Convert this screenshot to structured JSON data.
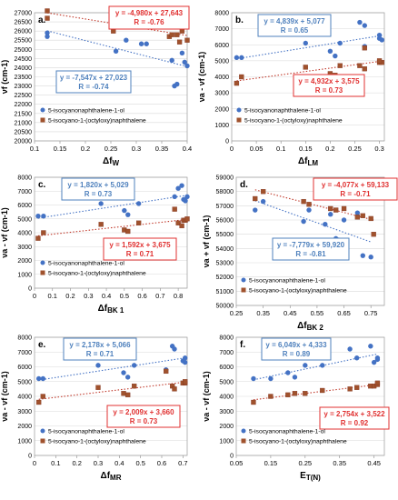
{
  "legend_labels": {
    "s1": "5-isocyanonaphthalene-1-ol",
    "s2": "5-isocyano-1-(octyloxy)naphthalene"
  },
  "colors": {
    "s1": "#4472C4",
    "s2": "#C0392B",
    "s2_fill": "#A0522D",
    "box_blue": "#4F81BD",
    "box_red": "#E03030"
  },
  "chart_data": [
    {
      "type": "scatter",
      "panel_label": "a.",
      "xlabel": "ΔfW",
      "ylabel": "νf (cm-1)",
      "xlim": [
        0.1,
        0.4
      ],
      "ylim": [
        20000,
        27000
      ],
      "xticks": [
        "0.1",
        "0.15",
        "0.2",
        "0.25",
        "0.3",
        "0.35",
        "0.4"
      ],
      "yticks": [
        "20000",
        "20500",
        "21000",
        "21500",
        "22000",
        "22500",
        "23000",
        "23500",
        "24000",
        "24500",
        "25000",
        "25500",
        "26000",
        "26500",
        "27000"
      ],
      "series": [
        {
          "name": "5-isocyanonaphthalene-1-ol",
          "points": [
            [
              0.125,
              25900
            ],
            [
              0.125,
              25700
            ],
            [
              0.26,
              24900
            ],
            [
              0.28,
              25500
            ],
            [
              0.31,
              25300
            ],
            [
              0.32,
              25300
            ],
            [
              0.37,
              24400
            ],
            [
              0.375,
              23000
            ],
            [
              0.38,
              23100
            ],
            [
              0.39,
              24800
            ],
            [
              0.395,
              24300
            ],
            [
              0.4,
              24100
            ]
          ]
        },
        {
          "name": "5-isocyano-1-(octyloxy)naphthalene",
          "points": [
            [
              0.125,
              27100
            ],
            [
              0.125,
              26700
            ],
            [
              0.255,
              26000
            ],
            [
              0.3,
              26600
            ],
            [
              0.31,
              26700
            ],
            [
              0.32,
              26600
            ],
            [
              0.365,
              25700
            ],
            [
              0.37,
              25800
            ],
            [
              0.38,
              25800
            ],
            [
              0.385,
              25400
            ],
            [
              0.39,
              26000
            ],
            [
              0.4,
              25500
            ]
          ]
        }
      ],
      "equations": [
        {
          "line1": "y = -4,980x + 27,643",
          "line2": "R = -0.76",
          "color": "red"
        },
        {
          "line1": "y = -7,547x + 27,023",
          "line2": "R = -0.74",
          "color": "blue"
        }
      ]
    },
    {
      "type": "scatter",
      "panel_label": "b.",
      "xlabel": "ΔfLM",
      "ylabel": "νa - νf (cm-1)",
      "xlim": [
        0,
        0.31
      ],
      "ylim": [
        0,
        8000
      ],
      "xticks": [
        "0",
        "0.05",
        "0.1",
        "0.15",
        "0.2",
        "0.25",
        "0.3"
      ],
      "yticks": [
        "0",
        "1000",
        "2000",
        "3000",
        "4000",
        "5000",
        "6000",
        "7000",
        "8000"
      ],
      "series": [
        {
          "name": "5-isocyanonaphthalene-1-ol",
          "points": [
            [
              0.01,
              5200
            ],
            [
              0.02,
              5200
            ],
            [
              0.15,
              6100
            ],
            [
              0.2,
              5600
            ],
            [
              0.21,
              5300
            ],
            [
              0.22,
              6100
            ],
            [
              0.26,
              7400
            ],
            [
              0.27,
              7200
            ],
            [
              0.27,
              5900
            ],
            [
              0.3,
              6400
            ],
            [
              0.305,
              6300
            ],
            [
              0.3,
              6600
            ]
          ]
        },
        {
          "name": "5-isocyano-1-(octyloxy)naphthalene",
          "points": [
            [
              0.01,
              3600
            ],
            [
              0.02,
              4000
            ],
            [
              0.15,
              4600
            ],
            [
              0.2,
              4200
            ],
            [
              0.21,
              4100
            ],
            [
              0.22,
              4700
            ],
            [
              0.26,
              4700
            ],
            [
              0.27,
              4500
            ],
            [
              0.27,
              5800
            ],
            [
              0.3,
              4900
            ],
            [
              0.305,
              4900
            ],
            [
              0.3,
              5000
            ]
          ]
        }
      ],
      "equations": [
        {
          "line1": "y = 4,839x + 5,077",
          "line2": "R = 0.65",
          "color": "blue"
        },
        {
          "line1": "y = 4,932x + 3,575",
          "line2": "R = 0.73",
          "color": "red"
        }
      ]
    },
    {
      "type": "scatter",
      "panel_label": "c.",
      "xlabel": "ΔfBK 1",
      "ylabel": "νa - νf (cm-1)",
      "xlim": [
        0,
        0.85
      ],
      "ylim": [
        0,
        8000
      ],
      "xticks": [
        "0",
        "0.1",
        "0.2",
        "0.3",
        "0.4",
        "0.5",
        "0.6",
        "0.7",
        "0.8"
      ],
      "yticks": [
        "0",
        "1000",
        "2000",
        "3000",
        "4000",
        "5000",
        "6000",
        "7000",
        "8000"
      ],
      "series": [
        {
          "name": "5-isocyanonaphthalene-1-ol",
          "points": [
            [
              0.02,
              5200
            ],
            [
              0.05,
              5200
            ],
            [
              0.37,
              6100
            ],
            [
              0.5,
              5600
            ],
            [
              0.52,
              5300
            ],
            [
              0.58,
              6100
            ],
            [
              0.78,
              6600
            ],
            [
              0.8,
              7200
            ],
            [
              0.82,
              7400
            ],
            [
              0.83,
              6400
            ],
            [
              0.84,
              6300
            ],
            [
              0.85,
              6600
            ]
          ]
        },
        {
          "name": "5-isocyano-1-(octyloxy)naphthalene",
          "points": [
            [
              0.02,
              3600
            ],
            [
              0.05,
              4000
            ],
            [
              0.37,
              4600
            ],
            [
              0.5,
              4200
            ],
            [
              0.52,
              4100
            ],
            [
              0.58,
              4700
            ],
            [
              0.78,
              5700
            ],
            [
              0.8,
              4700
            ],
            [
              0.82,
              4500
            ],
            [
              0.83,
              4900
            ],
            [
              0.84,
              4900
            ],
            [
              0.85,
              5000
            ]
          ]
        }
      ],
      "equations": [
        {
          "line1": "y = 1,820x + 5,029",
          "line2": "R = 0.73",
          "color": "blue"
        },
        {
          "line1": "y = 1,592x + 3,675",
          "line2": "R = 0.71",
          "color": "red"
        }
      ]
    },
    {
      "type": "scatter",
      "panel_label": "d.",
      "xlabel": "ΔfBK 2",
      "ylabel": "νa + νf (cm-1)",
      "xlim": [
        0.25,
        0.8
      ],
      "ylim": [
        50000,
        59000
      ],
      "xticks": [
        "0.25",
        "0.35",
        "0.45",
        "0.55",
        "0.65",
        "0.75"
      ],
      "yticks": [
        "50000",
        "51000",
        "52000",
        "53000",
        "54000",
        "55000",
        "56000",
        "57000",
        "58000",
        "59000"
      ],
      "series": [
        {
          "name": "5-isocyanonaphthalene-1-ol",
          "points": [
            [
              0.32,
              56700
            ],
            [
              0.35,
              57300
            ],
            [
              0.5,
              55900
            ],
            [
              0.52,
              56700
            ],
            [
              0.58,
              55700
            ],
            [
              0.6,
              56400
            ],
            [
              0.62,
              54700
            ],
            [
              0.63,
              54600
            ],
            [
              0.65,
              56000
            ],
            [
              0.72,
              53500
            ],
            [
              0.75,
              53400
            ],
            [
              0.7,
              56500
            ]
          ]
        },
        {
          "name": "5-isocyano-1-(octyloxy)naphthalene",
          "points": [
            [
              0.32,
              57500
            ],
            [
              0.35,
              58000
            ],
            [
              0.5,
              57300
            ],
            [
              0.52,
              57100
            ],
            [
              0.57,
              58100
            ],
            [
              0.6,
              56800
            ],
            [
              0.62,
              56700
            ],
            [
              0.65,
              56800
            ],
            [
              0.7,
              56200
            ],
            [
              0.72,
              56300
            ],
            [
              0.75,
              56100
            ],
            [
              0.76,
              55000
            ]
          ]
        }
      ],
      "equations": [
        {
          "line1": "y = -4,077x + 59,133",
          "line2": "R = -0.71",
          "color": "red"
        },
        {
          "line1": "y = -7,779x + 59,920",
          "line2": "R = -0.81",
          "color": "blue"
        }
      ]
    },
    {
      "type": "scatter",
      "panel_label": "e.",
      "xlabel": "ΔfMR",
      "ylabel": "νa - νf (cm-1)",
      "xlim": [
        0,
        0.72
      ],
      "ylim": [
        0,
        8000
      ],
      "xticks": [
        "0",
        "0.1",
        "0.2",
        "0.3",
        "0.4",
        "0.5",
        "0.6",
        "0.7"
      ],
      "yticks": [
        "0",
        "1000",
        "2000",
        "3000",
        "4000",
        "5000",
        "6000",
        "7000",
        "8000"
      ],
      "series": [
        {
          "name": "5-isocyanonaphthalene-1-ol",
          "points": [
            [
              0.02,
              5200
            ],
            [
              0.04,
              5200
            ],
            [
              0.3,
              6100
            ],
            [
              0.42,
              5600
            ],
            [
              0.44,
              5300
            ],
            [
              0.47,
              6100
            ],
            [
              0.62,
              5800
            ],
            [
              0.65,
              7400
            ],
            [
              0.66,
              7200
            ],
            [
              0.7,
              6400
            ],
            [
              0.71,
              6300
            ],
            [
              0.71,
              6600
            ]
          ]
        },
        {
          "name": "5-isocyano-1-(octyloxy)naphthalene",
          "points": [
            [
              0.02,
              3600
            ],
            [
              0.04,
              4000
            ],
            [
              0.3,
              4600
            ],
            [
              0.42,
              4200
            ],
            [
              0.44,
              4100
            ],
            [
              0.47,
              4700
            ],
            [
              0.62,
              5700
            ],
            [
              0.65,
              4700
            ],
            [
              0.66,
              4500
            ],
            [
              0.7,
              4900
            ],
            [
              0.71,
              4900
            ],
            [
              0.71,
              5000
            ]
          ]
        }
      ],
      "equations": [
        {
          "line1": "y = 2,178x + 5,066",
          "line2": "R = 0.71",
          "color": "blue"
        },
        {
          "line1": "y = 2,009x + 3,660",
          "line2": "R = 0.73",
          "color": "red"
        }
      ]
    },
    {
      "type": "scatter",
      "panel_label": "f.",
      "xlabel": "ET(N)",
      "ylabel": "νa - νf (cm-1)",
      "xlim": [
        0.05,
        0.48
      ],
      "ylim": [
        0,
        8000
      ],
      "xticks": [
        "0.05",
        "0.15",
        "0.25",
        "0.35",
        "0.45"
      ],
      "yticks": [
        "0",
        "1000",
        "2000",
        "3000",
        "4000",
        "5000",
        "6000",
        "7000",
        "8000"
      ],
      "series": [
        {
          "name": "5-isocyanonaphthalene-1-ol",
          "points": [
            [
              0.1,
              5200
            ],
            [
              0.15,
              5200
            ],
            [
              0.2,
              5600
            ],
            [
              0.22,
              5300
            ],
            [
              0.25,
              6100
            ],
            [
              0.3,
              6100
            ],
            [
              0.38,
              7200
            ],
            [
              0.4,
              6600
            ],
            [
              0.44,
              7400
            ],
            [
              0.45,
              6300
            ],
            [
              0.46,
              6500
            ],
            [
              0.46,
              6600
            ]
          ]
        },
        {
          "name": "5-isocyano-1-(octyloxy)naphthalene",
          "points": [
            [
              0.1,
              3600
            ],
            [
              0.15,
              4000
            ],
            [
              0.2,
              4100
            ],
            [
              0.22,
              4200
            ],
            [
              0.25,
              4200
            ],
            [
              0.3,
              4400
            ],
            [
              0.38,
              4500
            ],
            [
              0.4,
              4600
            ],
            [
              0.44,
              4700
            ],
            [
              0.45,
              4700
            ],
            [
              0.46,
              4800
            ],
            [
              0.46,
              4900
            ]
          ]
        }
      ],
      "equations": [
        {
          "line1": "y = 6,049x + 4,333",
          "line2": "R = 0.89",
          "color": "blue"
        },
        {
          "line1": "y = 2,754x + 3,522",
          "line2": "R = 0.92",
          "color": "red"
        }
      ]
    }
  ]
}
